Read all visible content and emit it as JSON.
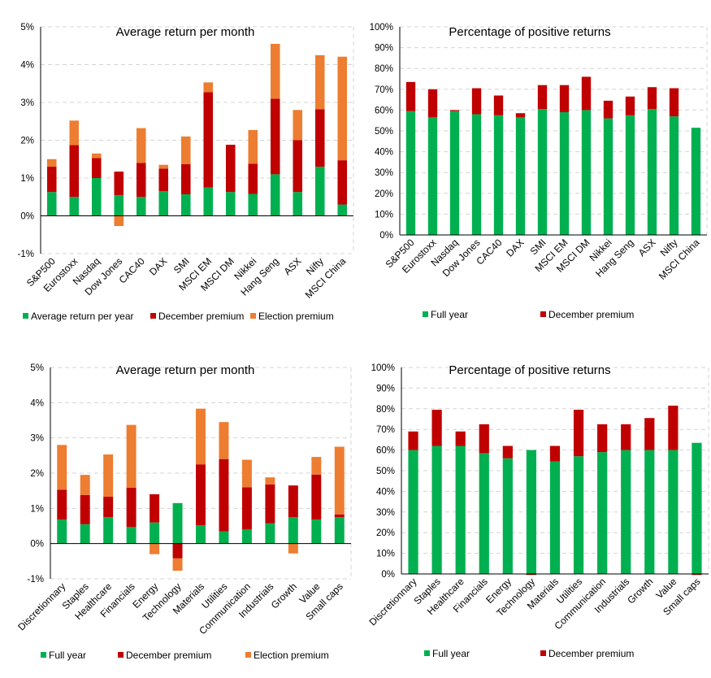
{
  "chart_data": [
    {
      "id": "c1",
      "type": "bar",
      "stacked": true,
      "title": "Average return per month",
      "categories": [
        "S&P500",
        "Eurostoxx",
        "Nasdaq",
        "Dow Jones",
        "CAC40",
        "DAX",
        "SMI",
        "MSCI EM",
        "MSCI DM",
        "Nikkei",
        "Hang Seng",
        "ASX",
        "Nifty",
        "MSCI China"
      ],
      "series": [
        {
          "name": "Average return per year",
          "color": "#00b050",
          "values": [
            0.63,
            0.5,
            1.0,
            0.55,
            0.5,
            0.65,
            0.57,
            0.75,
            0.63,
            0.58,
            1.1,
            0.63,
            1.3,
            0.3
          ]
        },
        {
          "name": "December premium",
          "color": "#c00000",
          "values": [
            0.67,
            1.37,
            0.53,
            0.62,
            0.9,
            0.6,
            0.8,
            2.52,
            1.25,
            0.8,
            2.0,
            1.37,
            1.52,
            1.17
          ]
        },
        {
          "name": "Election premium",
          "color": "#ed7d31",
          "values": [
            0.2,
            0.65,
            0.12,
            -0.27,
            0.92,
            0.1,
            0.73,
            0.26,
            0.0,
            0.89,
            1.45,
            0.8,
            1.43,
            2.74
          ]
        }
      ],
      "ylim": [
        -1,
        5
      ],
      "yticks": [
        "-1%",
        "0%",
        "1%",
        "2%",
        "3%",
        "4%",
        "5%"
      ],
      "legend": "bottom",
      "grid": true
    },
    {
      "id": "c2",
      "type": "bar",
      "stacked": true,
      "title": "Percentage of positive returns",
      "categories": [
        "S&P500",
        "Eurostoxx",
        "Nasdaq",
        "Dow Jones",
        "CAC40",
        "DAX",
        "SMI",
        "MSCI EM",
        "MSCI DM",
        "Nikkei",
        "Hang Seng",
        "ASX",
        "Nifty",
        "MSCI China"
      ],
      "series": [
        {
          "name": "Full year",
          "color": "#00b050",
          "values": [
            59.5,
            56.5,
            59.5,
            58.0,
            57.5,
            56.5,
            60.5,
            59.0,
            60.0,
            56.0,
            57.5,
            60.5,
            57.0,
            51.5
          ]
        },
        {
          "name": "December premium",
          "color": "#c00000",
          "values": [
            14.0,
            13.5,
            0.5,
            12.5,
            9.5,
            2.0,
            11.5,
            13.0,
            16.0,
            8.5,
            9.0,
            10.5,
            13.5,
            0.0
          ]
        }
      ],
      "ylim": [
        0,
        100
      ],
      "yticks": [
        "0%",
        "10%",
        "20%",
        "30%",
        "40%",
        "50%",
        "60%",
        "70%",
        "80%",
        "90%",
        "100%"
      ],
      "legend": "bottom",
      "grid": true
    },
    {
      "id": "c3",
      "type": "bar",
      "stacked": true,
      "title": "Average return per month",
      "categories": [
        "Discretionnary",
        "Staples",
        "Healthcare",
        "Financials",
        "Energy",
        "Technology",
        "Materials",
        "Utilities",
        "Communication",
        "Industrials",
        "Growth",
        "Value",
        "Small caps"
      ],
      "series": [
        {
          "name": "Full year",
          "color": "#00b050",
          "values": [
            0.68,
            0.55,
            0.75,
            0.47,
            0.6,
            1.15,
            0.52,
            0.35,
            0.4,
            0.58,
            0.75,
            0.68,
            0.75
          ]
        },
        {
          "name": "December premium",
          "color": "#c00000",
          "values": [
            0.85,
            0.83,
            0.58,
            1.12,
            0.8,
            -0.42,
            1.73,
            2.05,
            1.2,
            1.1,
            0.9,
            1.28,
            0.08
          ]
        },
        {
          "name": "Election premium",
          "color": "#ed7d31",
          "values": [
            1.27,
            0.57,
            1.2,
            1.78,
            -0.3,
            -0.35,
            1.58,
            1.05,
            0.78,
            0.2,
            -0.28,
            0.5,
            1.92
          ]
        }
      ],
      "ylim": [
        -1,
        5
      ],
      "yticks": [
        "-1%",
        "0%",
        "1%",
        "2%",
        "3%",
        "4%",
        "5%"
      ],
      "legend": "bottom",
      "grid": true
    },
    {
      "id": "c4",
      "type": "bar",
      "stacked": true,
      "title": "Percentage of positive returns",
      "categories": [
        "Discretionnary",
        "Staples",
        "Healthcare",
        "Financials",
        "Energy",
        "Technology",
        "Materials",
        "Utilities",
        "Communication",
        "Industrials",
        "Growth",
        "Value",
        "Small caps"
      ],
      "series": [
        {
          "name": "Full year",
          "color": "#00b050",
          "values": [
            60.0,
            62.0,
            62.0,
            58.5,
            56.0,
            60.0,
            54.5,
            57.0,
            59.0,
            60.0,
            60.0,
            60.0,
            63.5
          ]
        },
        {
          "name": "December premium",
          "color": "#c00000",
          "values": [
            9.0,
            17.5,
            7.0,
            14.0,
            6.0,
            -0.5,
            7.5,
            22.5,
            13.5,
            12.5,
            15.5,
            21.5,
            -0.5
          ]
        }
      ],
      "ylim": [
        0,
        100
      ],
      "yticks": [
        "0%",
        "10%",
        "20%",
        "30%",
        "40%",
        "50%",
        "60%",
        "70%",
        "80%",
        "90%",
        "100%"
      ],
      "legend": "bottom",
      "grid": true
    }
  ]
}
